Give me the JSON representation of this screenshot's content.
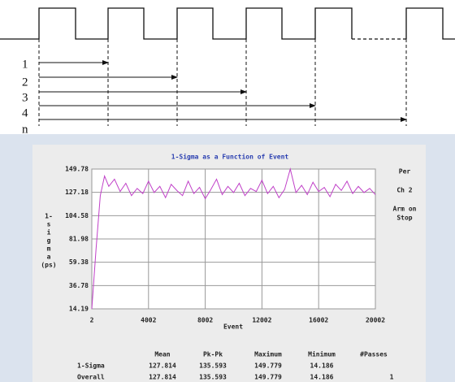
{
  "diagram": {
    "labels": [
      "1",
      "2",
      "3",
      "4",
      "n"
    ]
  },
  "chart_data": {
    "type": "line",
    "title": "1-Sigma as a Function of Event",
    "xlabel": "Event",
    "ylabel_lines": [
      "1-",
      "s",
      "i",
      "g",
      "m",
      "a",
      "(ps)"
    ],
    "side_labels": [
      "Per",
      "Ch 2",
      "Arm on",
      "Stop"
    ],
    "xlim": [
      2,
      20002
    ],
    "xticks": [
      2,
      4002,
      8002,
      12002,
      16002,
      20002
    ],
    "ylim": [
      14.19,
      149.78
    ],
    "yticks": [
      14.19,
      36.78,
      59.38,
      81.98,
      104.58,
      127.18,
      149.78
    ],
    "grid": true,
    "x": [
      2,
      300,
      600,
      900,
      1200,
      1600,
      2000,
      2400,
      2800,
      3200,
      3600,
      4000,
      4400,
      4800,
      5200,
      5600,
      6000,
      6400,
      6800,
      7200,
      7600,
      8000,
      8400,
      8800,
      9200,
      9600,
      10000,
      10400,
      10800,
      11200,
      11600,
      12000,
      12400,
      12800,
      13200,
      13600,
      14000,
      14400,
      14800,
      15200,
      15600,
      16000,
      16400,
      16800,
      17200,
      17600,
      18000,
      18400,
      18800,
      19200,
      19600,
      20000
    ],
    "series": [
      {
        "name": "1-Sigma",
        "color": "#c040c8",
        "values": [
          14.19,
          72,
          124,
          143,
          133,
          140,
          128,
          136,
          124,
          131,
          126,
          138,
          127,
          133,
          122,
          135,
          129,
          124,
          138,
          126,
          132,
          121,
          130,
          140,
          125,
          133,
          127,
          136,
          124,
          131,
          128,
          139,
          126,
          133,
          122,
          130,
          149.78,
          127,
          134,
          125,
          137,
          128,
          132,
          123,
          135,
          129,
          138,
          126,
          133,
          127,
          131,
          125
        ]
      }
    ]
  },
  "table": {
    "headers": [
      "Mean",
      "Pk-Pk",
      "Maximum",
      "Minimum",
      "#Passes"
    ],
    "rows": [
      [
        "1-Sigma",
        127.814,
        135.593,
        149.779,
        14.186
      ],
      [
        "Overall",
        127.814,
        135.593,
        149.779,
        14.186,
        1
      ]
    ]
  }
}
